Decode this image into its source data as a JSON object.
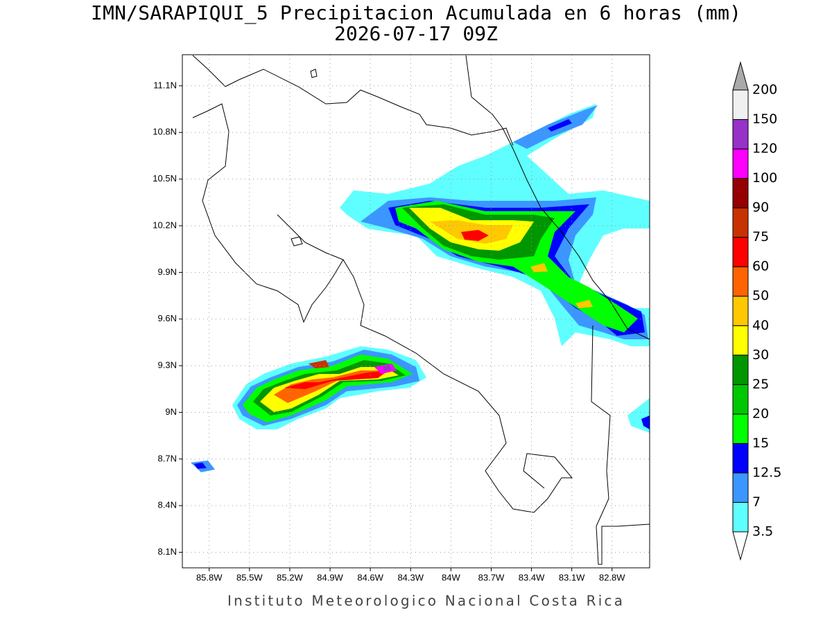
{
  "title": "IMN/SARAPIQUI_5 Precipitacion Acumulada en 6 horas (mm)",
  "subtitle": "2026-07-17 09Z",
  "footer": "Instituto Meteorologico Nacional Costa Rica",
  "map": {
    "lonlim": [
      -86.0,
      -82.52
    ],
    "latlim": [
      8.0,
      11.3
    ],
    "lon_ticks": [
      {
        "value": -85.8,
        "label": "85.8W"
      },
      {
        "value": -85.5,
        "label": "85.5W"
      },
      {
        "value": -85.2,
        "label": "85.2W"
      },
      {
        "value": -84.9,
        "label": "84.9W"
      },
      {
        "value": -84.6,
        "label": "84.6W"
      },
      {
        "value": -84.3,
        "label": "84.3W"
      },
      {
        "value": -84.0,
        "label": "84W"
      },
      {
        "value": -83.7,
        "label": "83.7W"
      },
      {
        "value": -83.4,
        "label": "83.4W"
      },
      {
        "value": -83.1,
        "label": "83.1W"
      },
      {
        "value": -82.8,
        "label": "82.8W"
      }
    ],
    "lat_ticks": [
      {
        "value": 8.1,
        "label": "8.1N"
      },
      {
        "value": 8.4,
        "label": "8.4N"
      },
      {
        "value": 8.7,
        "label": "8.7N"
      },
      {
        "value": 9.0,
        "label": "9N"
      },
      {
        "value": 9.3,
        "label": "9.3N"
      },
      {
        "value": 9.6,
        "label": "9.6N"
      },
      {
        "value": 9.9,
        "label": "9.9N"
      },
      {
        "value": 10.2,
        "label": "10.2N"
      },
      {
        "value": 10.5,
        "label": "10.5N"
      },
      {
        "value": 10.8,
        "label": "10.8N"
      },
      {
        "value": 11.1,
        "label": "11.1N"
      }
    ],
    "grid": true
  },
  "colorbar": {
    "levels": [
      3.5,
      7,
      12.5,
      15,
      20,
      25,
      30,
      40,
      50,
      60,
      75,
      90,
      100,
      120,
      150,
      200
    ],
    "colors": [
      "#5fffff",
      "#3c96ff",
      "#0000ff",
      "#00ff00",
      "#00c800",
      "#009600",
      "#ffff00",
      "#ffc800",
      "#ff6400",
      "#ff0000",
      "#c83200",
      "#960000",
      "#ff00ff",
      "#9632c8",
      "#f0f0f0"
    ],
    "under_color": "#ffffff",
    "over_color": "#aaaaaa"
  }
}
